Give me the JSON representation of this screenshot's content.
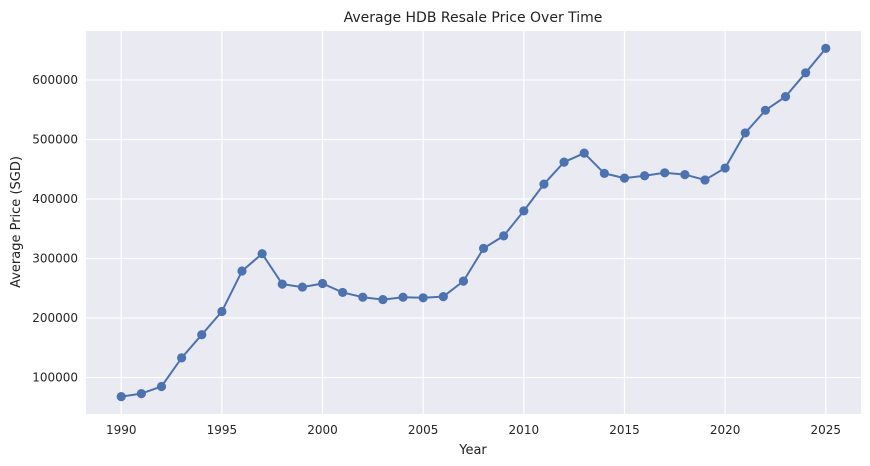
{
  "chart_data": {
    "type": "line",
    "title": "Average HDB Resale Price Over Time",
    "xlabel": "Year",
    "ylabel": "Average Price (SGD)",
    "x": [
      1990,
      1991,
      1992,
      1993,
      1994,
      1995,
      1996,
      1997,
      1998,
      1999,
      2000,
      2001,
      2002,
      2003,
      2004,
      2005,
      2006,
      2007,
      2008,
      2009,
      2010,
      2011,
      2012,
      2013,
      2014,
      2015,
      2016,
      2017,
      2018,
      2019,
      2020,
      2021,
      2022,
      2023,
      2024,
      2025
    ],
    "series": [
      {
        "values": [
          68000,
          73000,
          85000,
          133000,
          172000,
          211000,
          279000,
          308000,
          257000,
          252000,
          258000,
          243000,
          235000,
          231000,
          235000,
          234000,
          236000,
          262000,
          317000,
          338000,
          380000,
          425000,
          462000,
          477000,
          443000,
          435000,
          439000,
          444000,
          441000,
          432000,
          452000,
          511000,
          549000,
          572000,
          612000,
          653000
        ],
        "color": "#4c72b0"
      }
    ],
    "xticks": [
      "1990",
      "1995",
      "2000",
      "2005",
      "2010",
      "2015",
      "2020",
      "2025"
    ],
    "yticks": [
      "100000",
      "200000",
      "300000",
      "400000",
      "500000",
      "600000"
    ],
    "xlim": [
      1988.25,
      2026.75
    ],
    "ylim": [
      38750,
      682250
    ],
    "grid": true,
    "background": "#eaeaf2",
    "grid_color": "#ffffff"
  }
}
